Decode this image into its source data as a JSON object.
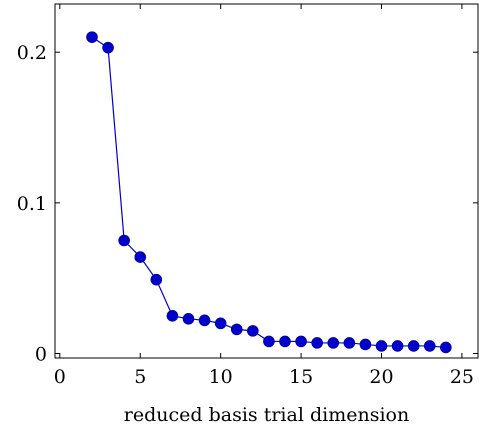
{
  "chart_data": {
    "type": "line",
    "title": "",
    "xlabel": "reduced basis trial dimension",
    "ylabel": "",
    "xlim": [
      -0.3,
      26
    ],
    "ylim": [
      -0.003,
      0.232
    ],
    "xticks": [
      0,
      5,
      10,
      15,
      20,
      25
    ],
    "yticks": [
      0,
      0.1,
      0.2
    ],
    "xtick_labels": [
      "0",
      "5",
      "10",
      "15",
      "20",
      "25"
    ],
    "ytick_labels": [
      "0",
      "0.1",
      "0.2"
    ],
    "grid": false,
    "series": [
      {
        "color": "#0000cc",
        "marker": "circle",
        "x": [
          2,
          3,
          4,
          5,
          6,
          7,
          8,
          9,
          10,
          11,
          12,
          13,
          14,
          15,
          16,
          17,
          18,
          19,
          20,
          21,
          22,
          23,
          24
        ],
        "y": [
          0.21,
          0.203,
          0.075,
          0.064,
          0.049,
          0.025,
          0.023,
          0.022,
          0.02,
          0.016,
          0.015,
          0.008,
          0.008,
          0.008,
          0.007,
          0.007,
          0.007,
          0.006,
          0.005,
          0.005,
          0.005,
          0.005,
          0.004
        ]
      }
    ]
  }
}
